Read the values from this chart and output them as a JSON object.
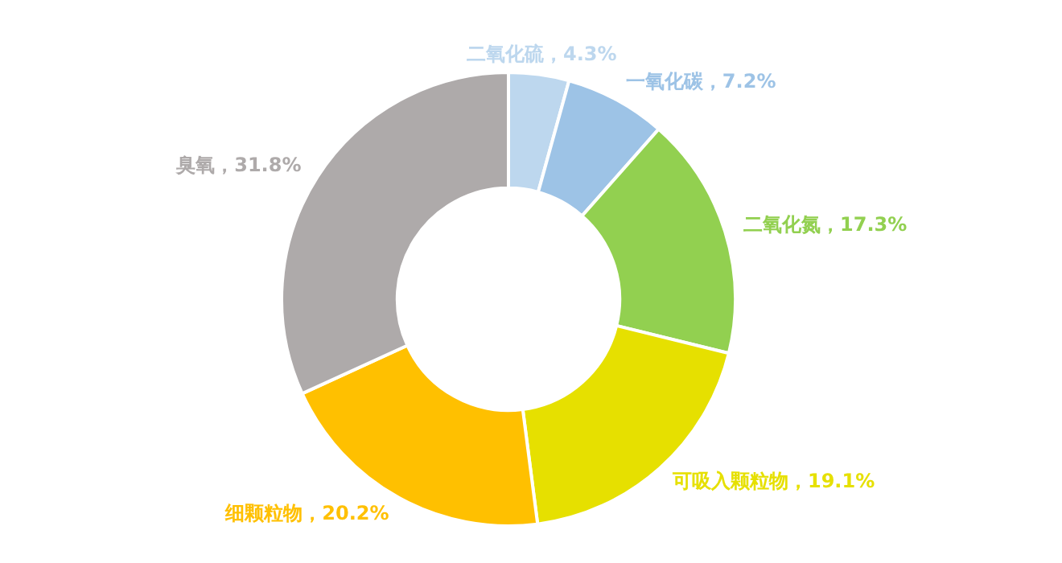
{
  "chart_data": {
    "type": "donut",
    "categories": [
      "二氧化硫",
      "一氧化碳",
      "二氧化氮",
      "可吸入颗粒物",
      "细颗粒物",
      "臭氧"
    ],
    "values": [
      4.3,
      7.2,
      17.3,
      19.1,
      20.2,
      31.8
    ],
    "value_labels": [
      "4.3%",
      "7.2%",
      "17.3%",
      "19.1%",
      "20.2%",
      "31.8%"
    ],
    "colors": [
      "#bdd7ee",
      "#9dc3e6",
      "#92d050",
      "#e6e000",
      "#ffc000",
      "#aeaaaa"
    ],
    "legend": false
  }
}
